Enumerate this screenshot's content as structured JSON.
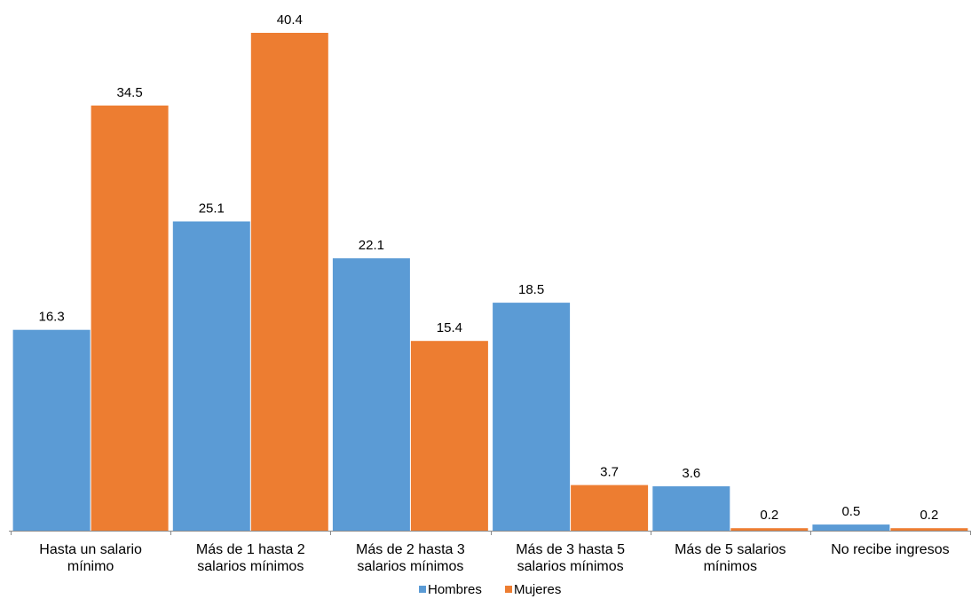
{
  "chart_data": {
    "type": "bar",
    "categories": [
      [
        "Hasta un salario",
        "mínimo"
      ],
      [
        "Más de 1 hasta 2",
        "salarios mínimos"
      ],
      [
        "Más de 2 hasta 3",
        "salarios mínimos"
      ],
      [
        "Más de 3 hasta 5",
        "salarios mínimos"
      ],
      [
        "Más de 5 salarios",
        "mínimos"
      ],
      [
        "No recibe ingresos"
      ]
    ],
    "series": [
      {
        "name": "Hombres",
        "color": "#5B9BD5",
        "values": [
          16.3,
          25.1,
          22.1,
          18.5,
          3.6,
          0.5
        ]
      },
      {
        "name": "Mujeres",
        "color": "#ED7D31",
        "values": [
          34.5,
          40.4,
          15.4,
          3.7,
          0.2,
          0.2
        ]
      }
    ],
    "ylim": [
      0,
      40.4
    ],
    "legend": "bottom-center",
    "grid": false
  }
}
